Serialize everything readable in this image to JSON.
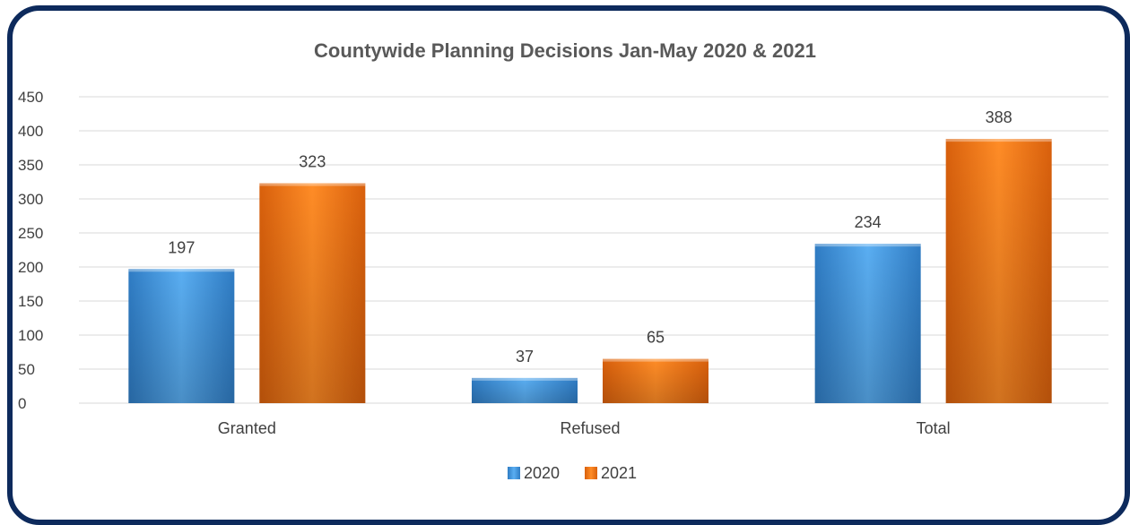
{
  "chart_data": {
    "type": "bar",
    "title": "Countywide Planning Decisions Jan-May 2020 & 2021",
    "categories": [
      "Granted",
      "Refused",
      "Total"
    ],
    "series": [
      {
        "name": "2020",
        "values": [
          197,
          37,
          234
        ],
        "color": "#4a9fe6"
      },
      {
        "name": "2021",
        "values": [
          323,
          65,
          388
        ],
        "color": "#f47c1a"
      }
    ],
    "ylim": [
      0,
      450
    ],
    "yticks": [
      0,
      50,
      100,
      150,
      200,
      250,
      300,
      350,
      400,
      450
    ],
    "grid": true,
    "legend_position": "bottom"
  },
  "colors": {
    "frame": "#0d2a5c",
    "gridline": "#d9d9d9",
    "text": "#404040",
    "title": "#595959"
  }
}
